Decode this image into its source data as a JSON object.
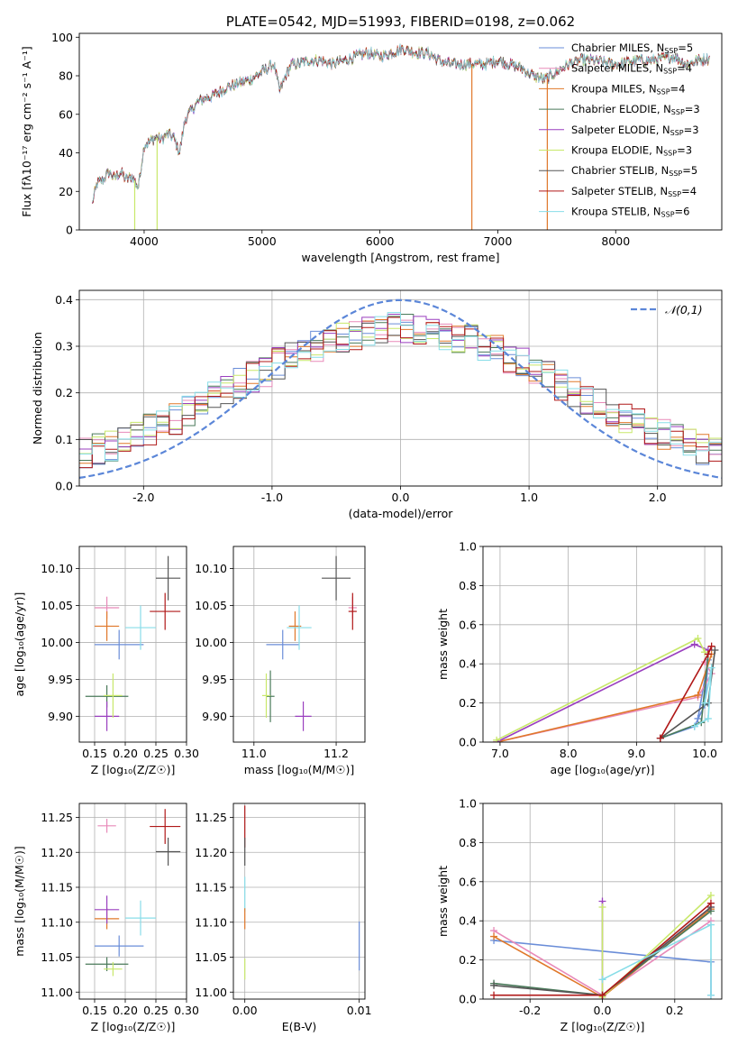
{
  "chart_data": [
    {
      "type": "line",
      "title": "PLATE=0542, MJD=51993, FIBERID=0198, z=0.062",
      "xlabel": "wavelength [Angstrom, rest frame]",
      "ylabel": "Flux [fλ10⁻¹⁷ erg cm⁻² s⁻¹ A⁻¹]",
      "xlim": [
        3450,
        8900
      ],
      "ylim": [
        0,
        102
      ],
      "xticks": [
        4000,
        5000,
        6000,
        7000,
        8000
      ],
      "yticks": [
        0,
        20,
        40,
        60,
        80,
        100
      ],
      "legend_position": "top-right",
      "spectrum_envelope": {
        "x": [
          3560,
          3600,
          3650,
          3700,
          3750,
          3800,
          3850,
          3900,
          3950,
          4000,
          4050,
          4100,
          4150,
          4200,
          4250,
          4300,
          4350,
          4400,
          4450,
          4500,
          4600,
          4700,
          4800,
          4900,
          5000,
          5100,
          5150,
          5200,
          5250,
          5300,
          5400,
          5500,
          5600,
          5700,
          5800,
          5900,
          6000,
          6100,
          6200,
          6300,
          6400,
          6500,
          6600,
          6700,
          6800,
          6900,
          7000,
          7100,
          7200,
          7300,
          7400,
          7500,
          7600,
          7700,
          7800,
          7900,
          8000,
          8100,
          8200,
          8300,
          8400,
          8500,
          8600,
          8700,
          8800
        ],
        "y": [
          14,
          24,
          26,
          30,
          27,
          30,
          26,
          28,
          22,
          44,
          46,
          48,
          47,
          50,
          48,
          40,
          58,
          62,
          66,
          68,
          70,
          74,
          76,
          78,
          82,
          86,
          72,
          80,
          86,
          86,
          88,
          88,
          86,
          88,
          90,
          92,
          90,
          92,
          94,
          92,
          92,
          88,
          86,
          86,
          86,
          86,
          88,
          86,
          84,
          80,
          78,
          82,
          86,
          88,
          88,
          87,
          86,
          87,
          88,
          88,
          89,
          90,
          86,
          88,
          89
        ]
      },
      "series": [
        {
          "name": "Chabrier MILES, N_SSP=5",
          "label_main": "Chabrier MILES, N",
          "label_sub": "SSP",
          "label_tail": "=5",
          "color": "#6a8dd8"
        },
        {
          "name": "Salpeter MILES, N_SSP=4",
          "label_main": "Salpeter MILES, N",
          "label_sub": "SSP",
          "label_tail": "=4",
          "color": "#e88ab9"
        },
        {
          "name": "Kroupa MILES, N_SSP=4",
          "label_main": "Kroupa MILES, N",
          "label_sub": "SSP",
          "label_tail": "=4",
          "color": "#e0782a"
        },
        {
          "name": "Chabrier ELODIE, N_SSP=3",
          "label_main": "Chabrier ELODIE, N",
          "label_sub": "SSP",
          "label_tail": "=3",
          "color": "#4a7a5a"
        },
        {
          "name": "Salpeter ELODIE, N_SSP=3",
          "label_main": "Salpeter ELODIE, N",
          "label_sub": "SSP",
          "label_tail": "=3",
          "color": "#9a3fbf"
        },
        {
          "name": "Kroupa ELODIE, N_SSP=3",
          "label_main": "Kroupa ELODIE, N",
          "label_sub": "SSP",
          "label_tail": "=3",
          "color": "#c8e86a"
        },
        {
          "name": "Chabrier STELIB, N_SSP=5",
          "label_main": "Chabrier STELIB, N",
          "label_sub": "SSP",
          "label_tail": "=5",
          "color": "#555555"
        },
        {
          "name": "Salpeter STELIB, N_SSP=4",
          "label_main": "Salpeter STELIB, N",
          "label_sub": "SSP",
          "label_tail": "=4",
          "color": "#b01818"
        },
        {
          "name": "Kroupa STELIB, N_SSP=6",
          "label_main": "Kroupa STELIB, N",
          "label_sub": "SSP",
          "label_tail": "=6",
          "color": "#88dde8"
        }
      ],
      "drops_to_zero": [
        {
          "color": "#c8e86a",
          "x": 3920
        },
        {
          "color": "#c8e86a",
          "x": 4110
        },
        {
          "color": "#e0782a",
          "x": 6780
        },
        {
          "color": "#e0782a",
          "x": 7420
        }
      ]
    },
    {
      "type": "histogram",
      "xlabel": "(data-model)/error",
      "ylabel": "Normed distribution",
      "xlim": [
        -2.5,
        2.5
      ],
      "ylim": [
        0,
        0.42
      ],
      "xticks": [
        -2,
        -1,
        0,
        1,
        2
      ],
      "yticks": [
        0.0,
        0.1,
        0.2,
        0.3,
        0.4
      ],
      "legend": "𝒩(0,1)",
      "legend_position": "top-right",
      "gaussian_color": "#5b86d8",
      "bin_edges_range": [
        -2.5,
        2.5
      ],
      "n_bins": 50
    },
    {
      "type": "errorbar",
      "xlabel": "Z [log₁₀(Z/Z☉)]",
      "ylabel": "age  [log₁₀(age/yr)]",
      "xlim": [
        0.125,
        0.3
      ],
      "ylim": [
        9.865,
        10.13
      ],
      "xticks": [
        0.15,
        0.2,
        0.25,
        0.3
      ],
      "yticks": [
        9.9,
        9.95,
        10.0,
        10.05,
        10.1
      ],
      "points": [
        {
          "color": "#6a8dd8",
          "x": 0.19,
          "xerr": 0.04,
          "y": 9.997,
          "yerr": 0.02
        },
        {
          "color": "#e88ab9",
          "x": 0.17,
          "xerr": 0.02,
          "y": 10.047,
          "yerr": 0.015
        },
        {
          "color": "#e0782a",
          "x": 0.17,
          "xerr": 0.02,
          "y": 10.022,
          "yerr": 0.02
        },
        {
          "color": "#4a7a5a",
          "x": 0.17,
          "xerr": 0.035,
          "y": 9.927,
          "yerr": 0.015
        },
        {
          "color": "#9a3fbf",
          "x": 0.17,
          "xerr": 0.02,
          "y": 9.9,
          "yerr": 0.02
        },
        {
          "color": "#c8e86a",
          "x": 0.18,
          "xerr": 0.015,
          "y": 9.928,
          "yerr": 0.03
        },
        {
          "color": "#555555",
          "x": 0.27,
          "xerr": 0.02,
          "y": 10.087,
          "yerr": 0.03
        },
        {
          "color": "#b01818",
          "x": 0.265,
          "xerr": 0.025,
          "y": 10.042,
          "yerr": 0.025
        },
        {
          "color": "#88dde8",
          "x": 0.225,
          "xerr": 0.025,
          "y": 10.02,
          "yerr": 0.03
        }
      ]
    },
    {
      "type": "errorbar",
      "xlabel": "mass [log₁₀(M/M☉)]",
      "ylabel": "",
      "xlim": [
        10.95,
        11.27
      ],
      "ylim": [
        9.865,
        10.13
      ],
      "xticks": [
        11.0,
        11.2
      ],
      "yticks": [
        9.9,
        9.95,
        10.0,
        10.05,
        10.1
      ],
      "points": [
        {
          "color": "#6a8dd8",
          "x": 11.07,
          "xerr": 0.04,
          "y": 9.997,
          "yerr": 0.02
        },
        {
          "color": "#e88ab9",
          "x": 11.24,
          "xerr": 0.01,
          "y": 10.047,
          "yerr": 0.015
        },
        {
          "color": "#e0782a",
          "x": 11.1,
          "xerr": 0.015,
          "y": 10.022,
          "yerr": 0.02
        },
        {
          "color": "#4a7a5a",
          "x": 11.04,
          "xerr": 0.01,
          "y": 9.927,
          "yerr": 0.035
        },
        {
          "color": "#9a3fbf",
          "x": 11.12,
          "xerr": 0.02,
          "y": 9.9,
          "yerr": 0.02
        },
        {
          "color": "#c8e86a",
          "x": 11.03,
          "xerr": 0.01,
          "y": 9.928,
          "yerr": 0.03
        },
        {
          "color": "#555555",
          "x": 11.2,
          "xerr": 0.035,
          "y": 10.087,
          "yerr": 0.03
        },
        {
          "color": "#b01818",
          "x": 11.24,
          "xerr": 0.01,
          "y": 10.042,
          "yerr": 0.025
        },
        {
          "color": "#88dde8",
          "x": 11.11,
          "xerr": 0.03,
          "y": 10.02,
          "yerr": 0.03
        }
      ]
    },
    {
      "type": "line",
      "xlabel": "age  [log₁₀(age/yr)]",
      "ylabel": "mass weight",
      "xlim": [
        6.75,
        10.25
      ],
      "ylim": [
        0,
        1.0
      ],
      "xticks": [
        7,
        8,
        9,
        10
      ],
      "yticks": [
        0.0,
        0.2,
        0.4,
        0.6,
        0.8,
        1.0
      ],
      "series": [
        {
          "color": "#6a8dd8",
          "points": [
            [
              9.35,
              0.02
            ],
            [
              9.85,
              0.08
            ],
            [
              10.0,
              0.19
            ],
            [
              10.05,
              0.42
            ],
            [
              9.9,
              0.12
            ]
          ]
        },
        {
          "color": "#e88ab9",
          "points": [
            [
              6.95,
              0.0
            ],
            [
              9.9,
              0.23
            ],
            [
              10.1,
              0.35
            ],
            [
              10.0,
              0.41
            ]
          ]
        },
        {
          "color": "#e0782a",
          "points": [
            [
              6.95,
              0.0
            ],
            [
              9.9,
              0.24
            ],
            [
              10.1,
              0.45
            ]
          ]
        },
        {
          "color": "#4a7a5a",
          "points": [
            [
              9.35,
              0.02
            ],
            [
              9.95,
              0.1
            ],
            [
              10.05,
              0.45
            ]
          ]
        },
        {
          "color": "#9a3fbf",
          "points": [
            [
              6.95,
              0.0
            ],
            [
              9.85,
              0.5
            ],
            [
              10.05,
              0.47
            ]
          ]
        },
        {
          "color": "#c8e86a",
          "points": [
            [
              6.95,
              0.01
            ],
            [
              9.9,
              0.53
            ],
            [
              10.0,
              0.46
            ]
          ]
        },
        {
          "color": "#555555",
          "points": [
            [
              9.35,
              0.02
            ],
            [
              10.05,
              0.2
            ],
            [
              10.15,
              0.47
            ]
          ]
        },
        {
          "color": "#b01818",
          "points": [
            [
              9.35,
              0.02
            ],
            [
              10.05,
              0.45
            ],
            [
              10.1,
              0.49
            ]
          ]
        },
        {
          "color": "#88dde8",
          "points": [
            [
              9.85,
              0.08
            ],
            [
              10.05,
              0.12
            ],
            [
              10.1,
              0.38
            ],
            [
              10.0,
              0.2
            ]
          ]
        }
      ]
    },
    {
      "type": "errorbar",
      "xlabel": "Z [log₁₀(Z/Z☉)]",
      "ylabel": "mass [log₁₀(M/M☉)]",
      "xlim": [
        0.125,
        0.3
      ],
      "ylim": [
        10.99,
        11.27
      ],
      "xticks": [
        0.15,
        0.2,
        0.25,
        0.3
      ],
      "yticks": [
        11.0,
        11.05,
        11.1,
        11.15,
        11.2,
        11.25
      ],
      "points": [
        {
          "color": "#6a8dd8",
          "x": 0.19,
          "xerr": 0.04,
          "y": 11.066,
          "yerr": 0.015
        },
        {
          "color": "#e88ab9",
          "x": 0.17,
          "xerr": 0.015,
          "y": 11.238,
          "yerr": 0.01
        },
        {
          "color": "#e0782a",
          "x": 0.17,
          "xerr": 0.02,
          "y": 11.105,
          "yerr": 0.015
        },
        {
          "color": "#4a7a5a",
          "x": 0.17,
          "xerr": 0.035,
          "y": 11.04,
          "yerr": 0.01
        },
        {
          "color": "#9a3fbf",
          "x": 0.17,
          "xerr": 0.02,
          "y": 11.118,
          "yerr": 0.02
        },
        {
          "color": "#c8e86a",
          "x": 0.18,
          "xerr": 0.015,
          "y": 11.033,
          "yerr": 0.01
        },
        {
          "color": "#555555",
          "x": 0.27,
          "xerr": 0.02,
          "y": 11.201,
          "yerr": 0.02
        },
        {
          "color": "#b01818",
          "x": 0.265,
          "xerr": 0.025,
          "y": 11.237,
          "yerr": 0.025
        },
        {
          "color": "#88dde8",
          "x": 0.225,
          "xerr": 0.025,
          "y": 11.106,
          "yerr": 0.025
        }
      ]
    },
    {
      "type": "errorbar",
      "xlabel": "E(B-V)",
      "ylabel": "",
      "xlim": [
        -0.001,
        0.0105
      ],
      "ylim": [
        10.99,
        11.27
      ],
      "xticks": [
        0.0,
        0.01
      ],
      "yticks": [
        11.0,
        11.05,
        11.1,
        11.15,
        11.2,
        11.25
      ],
      "points": [
        {
          "color": "#6a8dd8",
          "x": 0.01,
          "y": 11.066,
          "yerr": 0.035
        },
        {
          "color": "#b01818",
          "x": 0.0,
          "y": 11.237,
          "yerr": 0.03
        },
        {
          "color": "#555555",
          "x": 0.0,
          "y": 11.201,
          "yerr": 0.02
        },
        {
          "color": "#88dde8",
          "x": 0.0,
          "y": 11.14,
          "yerr": 0.025
        },
        {
          "color": "#e0782a",
          "x": 0.0,
          "y": 11.105,
          "yerr": 0.015
        },
        {
          "color": "#c8e86a",
          "x": 0.0,
          "y": 11.033,
          "yerr": 0.015
        }
      ]
    },
    {
      "type": "line",
      "xlabel": "Z [log₁₀(Z/Z☉)]",
      "ylabel": "mass weight",
      "xlim": [
        -0.33,
        0.33
      ],
      "ylim": [
        0,
        1.0
      ],
      "xticks": [
        -0.2,
        0.0,
        0.2
      ],
      "yticks": [
        0.0,
        0.2,
        0.4,
        0.6,
        0.8,
        1.0
      ],
      "series": [
        {
          "color": "#6a8dd8",
          "points": [
            [
              -0.3,
              0.3
            ],
            [
              0.3,
              0.19
            ],
            [
              0.3,
              0.02
            ]
          ]
        },
        {
          "color": "#e88ab9",
          "points": [
            [
              -0.3,
              0.35
            ],
            [
              0.0,
              0.02
            ],
            [
              0.3,
              0.4
            ]
          ]
        },
        {
          "color": "#e0782a",
          "points": [
            [
              -0.3,
              0.32
            ],
            [
              0.0,
              0.01
            ],
            [
              0.3,
              0.46
            ]
          ]
        },
        {
          "color": "#4a7a5a",
          "points": [
            [
              -0.3,
              0.08
            ],
            [
              0.0,
              0.02
            ],
            [
              0.3,
              0.45
            ]
          ]
        },
        {
          "color": "#9a3fbf",
          "points": [
            [
              0.0,
              0.5
            ],
            [
              0.0,
              0.02
            ],
            [
              0.3,
              0.47
            ]
          ]
        },
        {
          "color": "#c8e86a",
          "points": [
            [
              0.0,
              0.47
            ],
            [
              0.0,
              0.01
            ],
            [
              0.3,
              0.53
            ]
          ]
        },
        {
          "color": "#555555",
          "points": [
            [
              -0.3,
              0.07
            ],
            [
              0.0,
              0.02
            ],
            [
              0.3,
              0.47
            ]
          ]
        },
        {
          "color": "#b01818",
          "points": [
            [
              -0.3,
              0.02
            ],
            [
              0.0,
              0.02
            ],
            [
              0.3,
              0.49
            ]
          ]
        },
        {
          "color": "#88dde8",
          "points": [
            [
              0.0,
              0.1
            ],
            [
              0.3,
              0.38
            ],
            [
              0.3,
              0.02
            ]
          ]
        }
      ]
    }
  ]
}
